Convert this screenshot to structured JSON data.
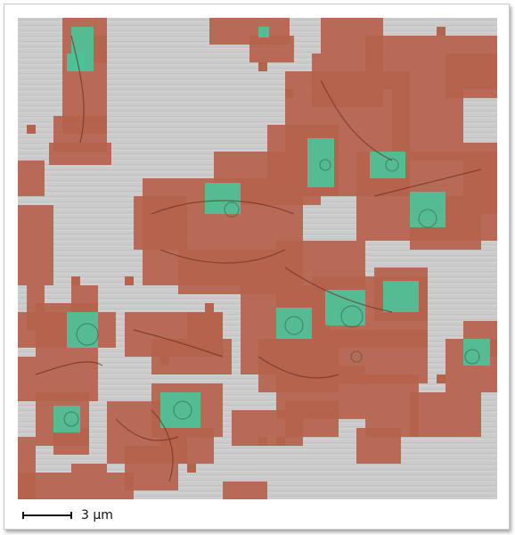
{
  "figure": {
    "scale_bar": {
      "label": "3 µm"
    },
    "overlay_colors": {
      "tissue_mask": "#b5634c",
      "nuclei_mask": "#49c49a",
      "background": "#cccccc"
    }
  }
}
